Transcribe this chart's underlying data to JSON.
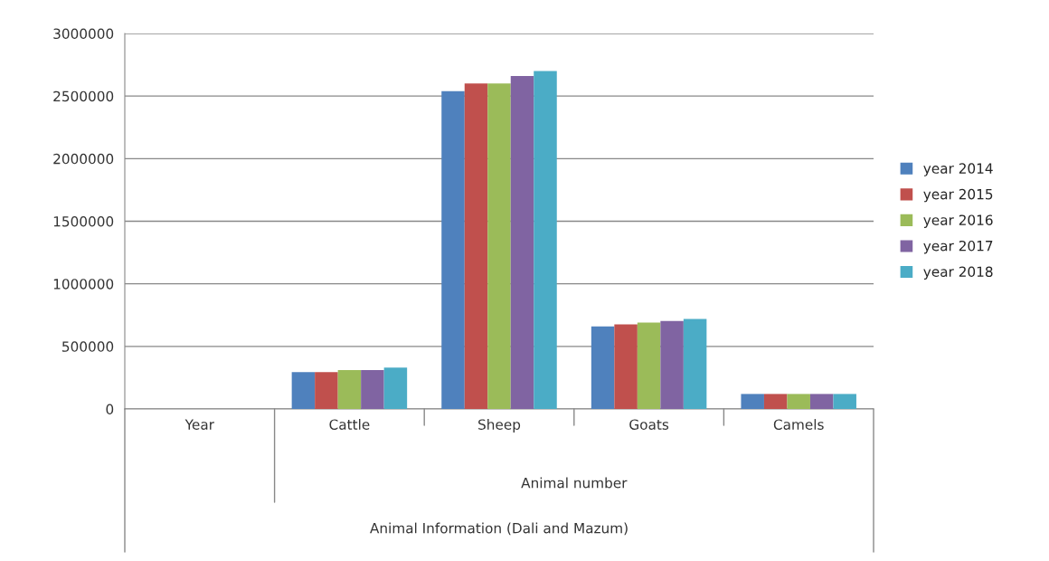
{
  "chart_data": {
    "type": "bar",
    "categories": [
      "Year",
      "Cattle",
      "Sheep",
      "Goats",
      "Camels"
    ],
    "series": [
      {
        "name": "year 2014",
        "color": "#4f81bd",
        "values": [
          null,
          295000,
          2540000,
          660000,
          120000
        ]
      },
      {
        "name": "year 2015",
        "color": "#c0504d",
        "values": [
          null,
          295000,
          2600000,
          675000,
          120000
        ]
      },
      {
        "name": "year 2016",
        "color": "#9bbb59",
        "values": [
          null,
          310000,
          2600000,
          690000,
          120000
        ]
      },
      {
        "name": "year 2017",
        "color": "#8064a2",
        "values": [
          null,
          310000,
          2660000,
          703000,
          120000
        ]
      },
      {
        "name": "year 2018",
        "color": "#4bacc6",
        "values": [
          null,
          330000,
          2700000,
          719000,
          120000
        ]
      }
    ],
    "ylim": [
      0,
      3000000
    ],
    "yticks": [
      0,
      500000,
      1000000,
      1500000,
      2000000,
      2500000,
      3000000
    ],
    "grid": "y",
    "legend": "right",
    "annotations": [
      "Animal number",
      "Animal Information (Dali and Mazum)"
    ]
  }
}
